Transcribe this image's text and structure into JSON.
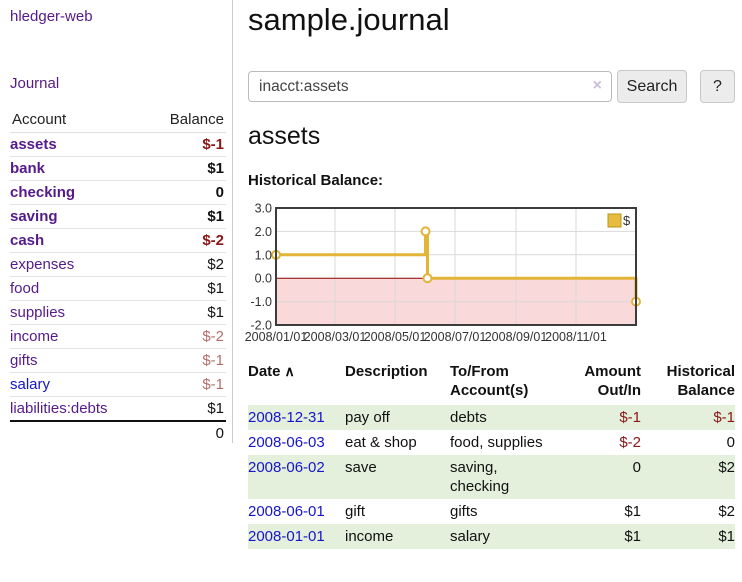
{
  "app": {
    "title": "hledger-web"
  },
  "colors": {
    "link_purple": "#551a8b",
    "link_blue": "#1515cc",
    "negative_strong": "#8b1616",
    "negative_muted": "#b26e6c",
    "row_stripe_green": "#e4efdc",
    "chart_gold": "#e2b538"
  },
  "sidebar": {
    "nav_journal": "Journal",
    "accounts_table": {
      "account_header": "Account",
      "balance_header": "Balance",
      "rows": [
        {
          "name": "assets",
          "indent": 1,
          "bold": true,
          "balance": "$-1",
          "balance_style": "neg-strong",
          "link_color": "purple"
        },
        {
          "name": "bank",
          "indent": 2,
          "bold": true,
          "balance": "$1",
          "balance_style": "normal",
          "link_color": "purple"
        },
        {
          "name": "checking",
          "indent": 3,
          "bold": true,
          "balance": "0",
          "balance_style": "normal",
          "link_color": "purple"
        },
        {
          "name": "saving",
          "indent": 3,
          "bold": true,
          "balance": "$1",
          "balance_style": "normal",
          "link_color": "purple"
        },
        {
          "name": "cash",
          "indent": 2,
          "bold": true,
          "balance": "$-2",
          "balance_style": "neg-strong",
          "link_color": "purple"
        },
        {
          "name": "expenses",
          "indent": 1,
          "bold": false,
          "balance": "$2",
          "balance_style": "plain",
          "link_color": "purple"
        },
        {
          "name": "food",
          "indent": 2,
          "bold": false,
          "balance": "$1",
          "balance_style": "plain",
          "link_color": "purple"
        },
        {
          "name": "supplies",
          "indent": 2,
          "bold": false,
          "balance": "$1",
          "balance_style": "plain",
          "link_color": "purple"
        },
        {
          "name": "income",
          "indent": 1,
          "bold": false,
          "balance": "$-2",
          "balance_style": "neg-muted",
          "link_color": "purple"
        },
        {
          "name": "gifts",
          "indent": 2,
          "bold": false,
          "balance": "$-1",
          "balance_style": "neg-muted",
          "link_color": "purple"
        },
        {
          "name": "salary",
          "indent": 2,
          "bold": false,
          "balance": "$-1",
          "balance_style": "neg-muted",
          "link_color": "blue"
        },
        {
          "name": "liabilities:debts",
          "indent": 1,
          "bold": false,
          "balance": "$1",
          "balance_style": "plain",
          "link_color": "purple"
        }
      ],
      "total": "0"
    }
  },
  "header": {
    "title": "sample.journal"
  },
  "search": {
    "value": "inacct:assets",
    "clear_icon": "×",
    "button_label": "Search",
    "help_label": "?"
  },
  "account_page": {
    "heading": "assets",
    "chart_title": "Historical Balance:"
  },
  "chart_data": {
    "type": "line",
    "step": "after",
    "title": "Historical Balance:",
    "legend": {
      "label": "$",
      "swatch_color": "#e8bc3e",
      "position": "top-right"
    },
    "ylim": [
      -2,
      3
    ],
    "grid": true,
    "yticks": [
      {
        "label": "3.0",
        "v": 3
      },
      {
        "label": "2.0",
        "v": 2
      },
      {
        "label": "1.0",
        "v": 1
      },
      {
        "label": "0.0",
        "v": 0
      },
      {
        "label": "-1.0",
        "v": -1
      },
      {
        "label": "-2.0",
        "v": -2
      }
    ],
    "xticks": [
      {
        "label": "2008/01/01",
        "f": 0.0
      },
      {
        "label": "2008/03/01",
        "f": 0.1639
      },
      {
        "label": "2008/05/01",
        "f": 0.3306
      },
      {
        "label": "2008/07/01",
        "f": 0.4973
      },
      {
        "label": "2008/09/01",
        "f": 0.6667
      },
      {
        "label": "2008/11/01",
        "f": 0.8333
      }
    ],
    "series": [
      {
        "name": "$",
        "points": [
          {
            "date": "2008/01/01",
            "f": 0.0,
            "value": 1
          },
          {
            "date": "2008/06/01",
            "f": 0.4153,
            "value": 2
          },
          {
            "date": "2008/06/03",
            "f": 0.4208,
            "value": 0
          },
          {
            "date": "2008/12/31",
            "f": 1.0,
            "value": -1
          }
        ]
      }
    ],
    "colors": {
      "line": "#e2b538",
      "marker_fill": "#ffffff",
      "negative_region_fill": "#f9d9d9",
      "zero_line": "#8b0000",
      "grid": "#d9d9d9",
      "border": "#3c3c3c",
      "tick_text": "#333333"
    }
  },
  "register_table": {
    "columns": [
      "Date",
      "Description",
      "To/From Account(s)",
      "Amount Out/In",
      "Historical Balance"
    ],
    "sort_icon_glyph": "∧",
    "rows": [
      {
        "date": "2008-12-31",
        "description": "pay off",
        "accounts": "debts",
        "amount": "$-1",
        "amount_neg": true,
        "balance": "$-1",
        "balance_neg": true
      },
      {
        "date": "2008-06-03",
        "description": "eat & shop",
        "accounts": "food, supplies",
        "amount": "$-2",
        "amount_neg": true,
        "balance": "0",
        "balance_neg": false
      },
      {
        "date": "2008-06-02",
        "description": "save",
        "accounts": "saving, checking",
        "amount": "0",
        "amount_neg": false,
        "balance": "$2",
        "balance_neg": false
      },
      {
        "date": "2008-06-01",
        "description": "gift",
        "accounts": "gifts",
        "amount": "$1",
        "amount_neg": false,
        "balance": "$2",
        "balance_neg": false
      },
      {
        "date": "2008-01-01",
        "description": "income",
        "accounts": "salary",
        "amount": "$1",
        "amount_neg": false,
        "balance": "$1",
        "balance_neg": false
      }
    ]
  }
}
